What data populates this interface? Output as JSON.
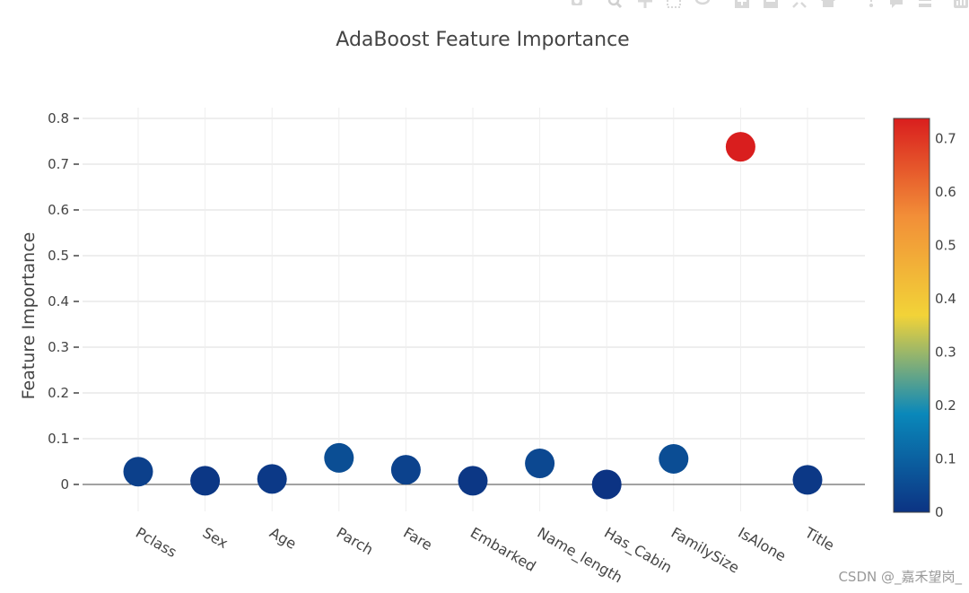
{
  "chart_data": {
    "type": "scatter",
    "title": "AdaBoost Feature Importance",
    "xlabel": "",
    "ylabel": "Feature Importance",
    "categories": [
      "Pclass",
      "Sex",
      "Age",
      "Parch",
      "Fare",
      "Embarked",
      "Name_length",
      "Has_Cabin",
      "FamilySize",
      "IsAlone",
      "Title"
    ],
    "values": [
      0.028,
      0.008,
      0.012,
      0.058,
      0.032,
      0.008,
      0.046,
      0.0,
      0.056,
      0.738,
      0.01
    ],
    "ylim": [
      -0.06,
      0.82
    ],
    "yticks": [
      0,
      0.1,
      0.2,
      0.3,
      0.4,
      0.5,
      0.6,
      0.7,
      0.8
    ],
    "ytick_labels": [
      "0",
      "0.1",
      "0.2",
      "0.3",
      "0.4",
      "0.5",
      "0.6",
      "0.7",
      "0.8"
    ],
    "grid": true,
    "colorscale": "Portland",
    "colorbar": {
      "range": [
        0,
        0.738
      ],
      "ticks": [
        0,
        0.1,
        0.2,
        0.3,
        0.4,
        0.5,
        0.6,
        0.7
      ],
      "tick_labels": [
        "0",
        "0.1",
        "0.2",
        "0.3",
        "0.4",
        "0.5",
        "0.6",
        "0.7"
      ],
      "colors": [
        "#0c3383",
        "#0a88ba",
        "#f2d338",
        "#f28f38",
        "#d91e1e"
      ]
    }
  },
  "watermark": "CSDN @_嘉禾望岗_",
  "modebar_icons": [
    "camera-icon",
    "zoom-icon",
    "pan-icon",
    "box-select-icon",
    "lasso-icon",
    "zoom-in-icon",
    "zoom-out-icon",
    "autoscale-icon",
    "home-icon",
    "spike-icon",
    "hover-closest-icon",
    "hover-compare-icon",
    "plotly-logo-icon"
  ]
}
